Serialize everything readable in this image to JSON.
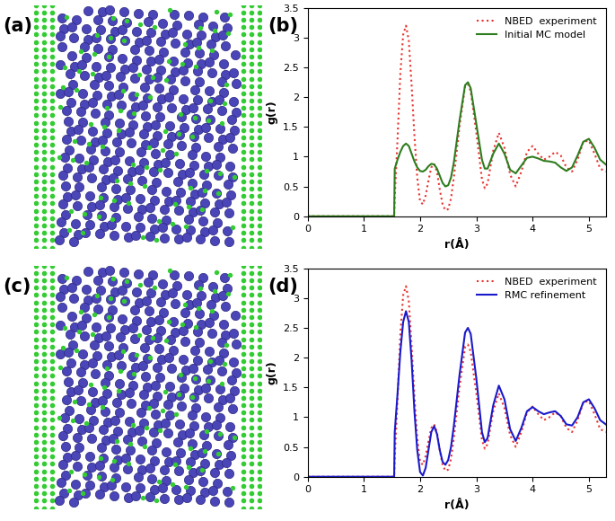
{
  "panel_labels": [
    "(a)",
    "(b)",
    "(c)",
    "(d)"
  ],
  "chart_data": [
    {
      "type": "line",
      "panel": "(b)",
      "x_label": "r(Å)",
      "y_label": "g(r)",
      "x": [
        0,
        1.54,
        1.55,
        1.6,
        1.65,
        1.7,
        1.75,
        1.8,
        1.85,
        1.9,
        1.95,
        2.0,
        2.05,
        2.1,
        2.15,
        2.2,
        2.25,
        2.3,
        2.35,
        2.4,
        2.45,
        2.5,
        2.55,
        2.6,
        2.7,
        2.8,
        2.85,
        2.9,
        3.0,
        3.1,
        3.15,
        3.2,
        3.3,
        3.4,
        3.5,
        3.6,
        3.7,
        3.8,
        3.9,
        4.0,
        4.1,
        4.2,
        4.3,
        4.4,
        4.5,
        4.6,
        4.7,
        4.8,
        4.9,
        5.0,
        5.1,
        5.2,
        5.3
      ],
      "series": [
        {
          "name": "NBED  experiment",
          "color": "#e8322e",
          "line_style": "dotted",
          "values": [
            0,
            0,
            0.3,
            1.3,
            2.4,
            3.05,
            3.2,
            2.95,
            2.2,
            1.35,
            0.65,
            0.25,
            0.2,
            0.35,
            0.6,
            0.82,
            0.88,
            0.75,
            0.45,
            0.2,
            0.1,
            0.12,
            0.3,
            0.65,
            1.5,
            2.18,
            2.22,
            2.1,
            1.4,
            0.62,
            0.47,
            0.55,
            1.1,
            1.4,
            1.15,
            0.7,
            0.5,
            0.75,
            1.08,
            1.18,
            1.05,
            0.95,
            1.0,
            1.08,
            1.02,
            0.82,
            0.75,
            0.95,
            1.25,
            1.27,
            1.05,
            0.8,
            0.75
          ]
        },
        {
          "name": "Initial MC model",
          "color": "#2e7d1f",
          "line_style": "solid",
          "values": [
            0,
            0,
            0.8,
            0.95,
            1.08,
            1.18,
            1.22,
            1.18,
            1.05,
            0.92,
            0.82,
            0.76,
            0.75,
            0.78,
            0.84,
            0.88,
            0.87,
            0.8,
            0.68,
            0.56,
            0.5,
            0.52,
            0.65,
            0.9,
            1.6,
            2.2,
            2.25,
            2.15,
            1.55,
            0.95,
            0.8,
            0.8,
            1.05,
            1.22,
            1.05,
            0.78,
            0.72,
            0.85,
            0.98,
            1.0,
            0.97,
            0.93,
            0.92,
            0.9,
            0.82,
            0.76,
            0.82,
            1.02,
            1.25,
            1.3,
            1.15,
            0.95,
            0.87
          ]
        }
      ],
      "xlim": [
        0,
        5.3
      ],
      "xticks": [
        0,
        1,
        2,
        3,
        4,
        5
      ],
      "ylim": [
        0,
        3.5
      ],
      "yticks": [
        0,
        0.5,
        1,
        1.5,
        2,
        2.5,
        3,
        3.5
      ],
      "legend": "upper right",
      "grid": false
    },
    {
      "type": "line",
      "panel": "(d)",
      "x_label": "r(Å)",
      "y_label": "g(r)",
      "x": [
        0,
        1.54,
        1.55,
        1.6,
        1.65,
        1.7,
        1.75,
        1.8,
        1.85,
        1.9,
        1.95,
        2.0,
        2.05,
        2.1,
        2.15,
        2.2,
        2.25,
        2.3,
        2.35,
        2.4,
        2.45,
        2.5,
        2.55,
        2.6,
        2.7,
        2.8,
        2.85,
        2.9,
        3.0,
        3.1,
        3.15,
        3.2,
        3.3,
        3.4,
        3.5,
        3.6,
        3.7,
        3.8,
        3.9,
        4.0,
        4.1,
        4.2,
        4.3,
        4.4,
        4.5,
        4.6,
        4.7,
        4.8,
        4.9,
        5.0,
        5.1,
        5.2,
        5.3
      ],
      "series": [
        {
          "name": "NBED  experiment",
          "color": "#e8322e",
          "line_style": "dotted",
          "values": [
            0,
            0,
            0.3,
            1.3,
            2.4,
            3.05,
            3.2,
            2.95,
            2.2,
            1.35,
            0.65,
            0.25,
            0.2,
            0.35,
            0.6,
            0.82,
            0.88,
            0.75,
            0.45,
            0.2,
            0.1,
            0.12,
            0.3,
            0.65,
            1.5,
            2.18,
            2.22,
            2.1,
            1.4,
            0.62,
            0.47,
            0.55,
            1.1,
            1.4,
            1.15,
            0.7,
            0.5,
            0.75,
            1.08,
            1.18,
            1.05,
            0.95,
            1.0,
            1.08,
            1.02,
            0.82,
            0.75,
            0.95,
            1.25,
            1.27,
            1.05,
            0.8,
            0.75
          ]
        },
        {
          "name": "RMC refinement",
          "color": "#1a1acc",
          "line_style": "solid",
          "values": [
            0,
            0,
            0.75,
            1.4,
            2.1,
            2.6,
            2.78,
            2.6,
            1.95,
            1.1,
            0.45,
            0.08,
            0.02,
            0.15,
            0.45,
            0.75,
            0.85,
            0.72,
            0.45,
            0.25,
            0.2,
            0.28,
            0.5,
            0.85,
            1.7,
            2.42,
            2.5,
            2.4,
            1.65,
            0.75,
            0.58,
            0.65,
            1.2,
            1.53,
            1.3,
            0.8,
            0.6,
            0.82,
            1.1,
            1.17,
            1.1,
            1.05,
            1.08,
            1.1,
            1.02,
            0.88,
            0.86,
            1.0,
            1.25,
            1.3,
            1.15,
            0.95,
            0.88
          ]
        }
      ],
      "xlim": [
        0,
        5.3
      ],
      "xticks": [
        0,
        1,
        2,
        3,
        4,
        5
      ],
      "ylim": [
        0,
        3.5
      ],
      "yticks": [
        0,
        0.5,
        1,
        1.5,
        2,
        2.5,
        3,
        3.5
      ],
      "legend": "upper right",
      "grid": false
    }
  ]
}
